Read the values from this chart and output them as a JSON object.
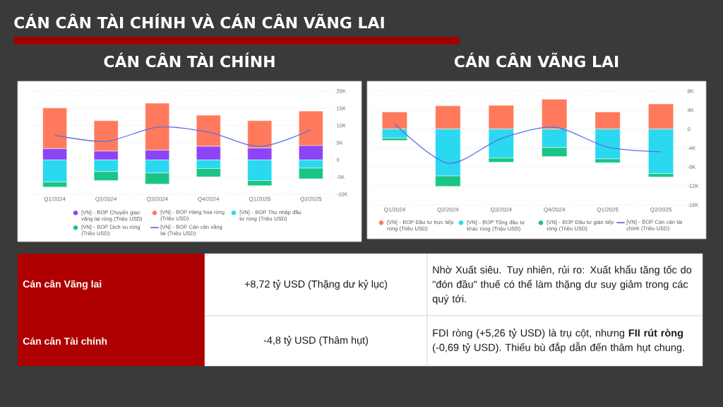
{
  "chart_data": [
    {
      "type": "other",
      "title": "CÁN CÂN TÀI CHÍNH VÀ CÁN CÂN VÃNG LAI"
    },
    {
      "type": "bar",
      "title": "CÁN CÂN TÀI CHÍNH",
      "stacked": true,
      "grid": "y",
      "legend": "bottom",
      "categories": [
        "Q1/2024",
        "Q2/2024",
        "Q3/2024",
        "Q4/2024",
        "Q1/2025",
        "Q2/2025"
      ],
      "series": [
        {
          "name": "[VN] - BOP Chuyển giao vãng lai ròng (Triệu USD)",
          "color": "#8b45f7",
          "values": [
            3300,
            2600,
            2900,
            4000,
            3500,
            4200
          ]
        },
        {
          "name": "[VN] - BOP Hàng hóa ròng (Triệu USD)",
          "color": "#ff7a5c",
          "values": [
            11800,
            8800,
            13600,
            9000,
            7900,
            10000
          ]
        },
        {
          "name": "[VN] - BOP Thu nhập đầu tư ròng (Triệu USD)",
          "color": "#2ad8f0",
          "values": [
            -6400,
            -3400,
            -3800,
            -2500,
            -6000,
            -2400
          ]
        },
        {
          "name": "[VN] - BOP Dịch vụ ròng (Triệu USD)",
          "color": "#19c584",
          "values": [
            -1500,
            -2600,
            -3200,
            -2400,
            -1500,
            -3100
          ]
        },
        {
          "name": "[VN] - BOP Cán cân vãng lai (Triệu USD)",
          "type": "line",
          "color": "#5a6ee6",
          "values": [
            7200,
            5400,
            9500,
            8100,
            3900,
            8700
          ]
        }
      ],
      "ylim": [
        -10000,
        20000
      ],
      "yticks": [
        {
          "value": -10000,
          "label": "-10K"
        },
        {
          "value": -5000,
          "label": "-5K"
        },
        0,
        {
          "value": 5000,
          "label": "5K"
        },
        {
          "value": 10000,
          "label": "10K"
        },
        {
          "value": 15000,
          "label": "15K"
        },
        {
          "value": 20000,
          "label": "20K"
        }
      ]
    },
    {
      "type": "bar",
      "title": "CÁN CÂN VÃNG LAI",
      "stacked": true,
      "grid": "y",
      "legend": "bottom",
      "categories": [
        "Q1/2024",
        "Q2/2024",
        "Q3/2024",
        "Q4/2024",
        "Q1/2025",
        "Q2/2025"
      ],
      "series": [
        {
          "name": "[VN] - BOP Đầu tư trực tiếp ròng (Triệu USD)",
          "color": "#ff7a5c",
          "values": [
            3600,
            4900,
            5000,
            6300,
            3600,
            5300
          ]
        },
        {
          "name": "[VN] - BOP Tổng đầu tư khác ròng (Triệu USD)",
          "color": "#2ad8f0",
          "values": [
            -1900,
            -9900,
            -6100,
            -3900,
            -6300,
            -9400
          ]
        },
        {
          "name": "[VN] - BOP Đầu tư gián tiếp ròng (Triệu USD)",
          "color": "#19c584",
          "values": [
            -500,
            -2200,
            -900,
            -1900,
            -800,
            -700
          ]
        },
        {
          "name": "[VN] - BOP Cán cân tài chính (Triệu USD)",
          "type": "line",
          "color": "#5a6ee6",
          "values": [
            1100,
            -7200,
            -2000,
            400,
            -3800,
            -4800
          ]
        }
      ],
      "ylim": [
        -16000,
        8000
      ],
      "yticks": [
        {
          "value": -16000,
          "label": "-16K"
        },
        {
          "value": -12000,
          "label": "-12K"
        },
        {
          "value": -8000,
          "label": "-8K"
        },
        {
          "value": -4000,
          "label": "-4K"
        },
        0,
        {
          "value": 4000,
          "label": "4K"
        },
        {
          "value": 8000,
          "label": "8K"
        }
      ]
    },
    {
      "type": "other",
      "categories": [
        "Cán cân Vãng lai",
        "Cán cân Tài chính"
      ],
      "annotations": [
        "+8,72 tỷ USD (Thặng dư kỷ lục)",
        "Nhờ Xuất siêu. Tuy nhiên, rủi ro: Xuất khẩu tăng tốc do \"đón đầu\" thuế có thể làm thặng dư suy giảm trong các quý tới.",
        "-4,8 tỷ USD (Thâm hụt)",
        "FDI ròng (+5,26 tỷ USD) là trụ cột, nhưng **FII rút ròng** (-0,69 tỷ USD). Thiếu bù đắp dẫn đến thâm hụt chung."
      ]
    }
  ]
}
